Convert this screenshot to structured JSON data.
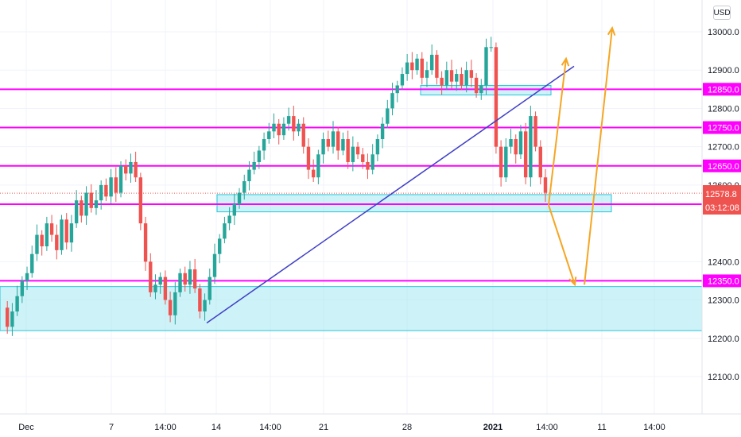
{
  "currency_button": "USD",
  "chart_data": {
    "type": "candlestick",
    "y_axis": {
      "ticks": [
        "13000.0",
        "12900.0",
        "12800.0",
        "12700.0",
        "12600.0",
        "12400.0",
        "12300.0",
        "12200.0",
        "12100.0"
      ],
      "tick_values": [
        13000,
        12900,
        12800,
        12700,
        12600,
        12400,
        12300,
        12200,
        12100
      ],
      "range": [
        12000,
        13060
      ]
    },
    "x_axis": {
      "labels": [
        "Dec",
        "7",
        "14:00",
        "14",
        "14:00",
        "21",
        "28",
        "2021",
        "14:00",
        "11",
        "14:00"
      ],
      "bold": [
        "2021"
      ]
    },
    "price_label": {
      "value": "12578.8",
      "countdown": "03:12:08",
      "price": 12578.8,
      "color": "#ef5350"
    },
    "horizontal_levels": [
      {
        "label": "12850.0",
        "value": 12850,
        "color": "#ff00ff"
      },
      {
        "label": "12750.0",
        "value": 12750,
        "color": "#ff00ff"
      },
      {
        "label": "12650.0",
        "value": 12650,
        "color": "#ff00ff"
      },
      {
        "label": "12550.0",
        "value": 12550,
        "color": "#ff00ff"
      },
      {
        "label": "12350.0",
        "value": 12350,
        "color": "#ff00ff"
      }
    ],
    "zones": [
      {
        "low": 12220,
        "high": 12335,
        "color": "#b2ebf2"
      },
      {
        "low": 12530,
        "high": 12575,
        "color": "#b2ebf2"
      },
      {
        "low": 12835,
        "high": 12860,
        "color": "#b2ebf2"
      }
    ],
    "trendline": {
      "from_price": 12240,
      "to_price": 12910,
      "color": "#3f3fc7"
    },
    "projection_arrows": {
      "color": "#f5a623",
      "targets": [
        12930,
        12340,
        13010
      ]
    },
    "candle_colors": {
      "up": "#26a69a",
      "down": "#ef5350"
    },
    "path": [
      12280,
      12230,
      12270,
      12310,
      12350,
      12370,
      12420,
      12470,
      12440,
      12500,
      12470,
      12430,
      12510,
      12450,
      12500,
      12560,
      12520,
      12580,
      12540,
      12560,
      12600,
      12570,
      12620,
      12580,
      12650,
      12630,
      12660,
      12620,
      12500,
      12400,
      12320,
      12340,
      12360,
      12300,
      12260,
      12320,
      12370,
      12340,
      12380,
      12330,
      12270,
      12300,
      12360,
      12420,
      12460,
      12500,
      12520,
      12550,
      12580,
      12610,
      12640,
      12660,
      12690,
      12720,
      12740,
      12760,
      12730,
      12760,
      12780,
      12740,
      12760,
      12700,
      12640,
      12620,
      12680,
      12720,
      12700,
      12740,
      12690,
      12720,
      12660,
      12700,
      12680,
      12660,
      12640,
      12680,
      12720,
      12760,
      12800,
      12840,
      12860,
      12890,
      12920,
      12900,
      12930,
      12880,
      12900,
      12940,
      12880,
      12860,
      12900,
      12870,
      12890,
      12860,
      12900,
      12880,
      12840,
      12860,
      12960,
      12960,
      12700,
      12620,
      12700,
      12720,
      12680,
      12740,
      12620,
      12780,
      12700,
      12620,
      12580
    ]
  }
}
